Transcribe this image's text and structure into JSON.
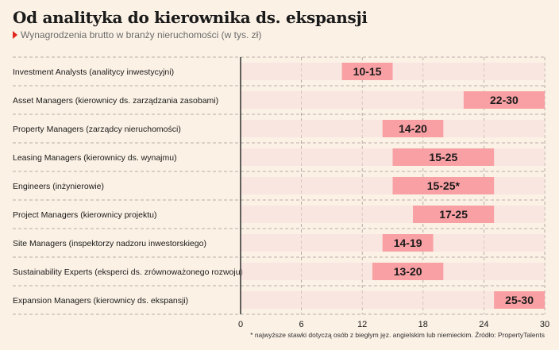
{
  "title": "Od analityka do kierownika ds. ekspansji",
  "subtitle": "Wynagrodzenia brutto w branży nieruchomości (w tys. zł)",
  "footnote": "* najwyższe stawki dotyczą osób z biegłym jęz. angielskim lub niemieckim. Źródło: PropertyTalents",
  "colors": {
    "background": "#fbf1e5",
    "bar": "#f9a0a4",
    "bar_track": "#f7dcdc",
    "marker": "#e2231a",
    "grid": "#a59b93",
    "axis": "#222222"
  },
  "chart_data": {
    "type": "bar",
    "orientation": "horizontal-range",
    "title": "Od analityka do kierownika ds. ekspansji",
    "subtitle": "Wynagrodzenia brutto w branży nieruchomości (w tys. zł)",
    "xlim": [
      0,
      30
    ],
    "xticks": [
      0,
      6,
      12,
      18,
      24,
      30
    ],
    "grid": true,
    "categories": [
      "Investment Analysts (analitycy inwestycyjni)",
      "Asset Managers (kierownicy ds. zarządzania zasobami)",
      "Property Managers (zarządcy nieruchomości)",
      "Leasing Managers (kierownicy ds. wynajmu)",
      "Engineers (inżynierowie)",
      "Project Managers (kierownicy projektu)",
      "Site Managers (inspektorzy nadzoru inwestorskiego)",
      "Sustainability Experts (eksperci ds. zrównoważonego rozwoju)",
      "Expansion Managers (kierownicy ds. ekspansji)"
    ],
    "ranges": [
      {
        "min": 10,
        "max": 15,
        "label": "10-15"
      },
      {
        "min": 22,
        "max": 30,
        "label": "22-30"
      },
      {
        "min": 14,
        "max": 20,
        "label": "14-20"
      },
      {
        "min": 15,
        "max": 25,
        "label": "15-25"
      },
      {
        "min": 15,
        "max": 25,
        "label": "15-25*"
      },
      {
        "min": 17,
        "max": 25,
        "label": "17-25"
      },
      {
        "min": 14,
        "max": 19,
        "label": "14-19"
      },
      {
        "min": 13,
        "max": 20,
        "label": "13-20"
      },
      {
        "min": 25,
        "max": 30,
        "label": "25-30"
      }
    ]
  }
}
